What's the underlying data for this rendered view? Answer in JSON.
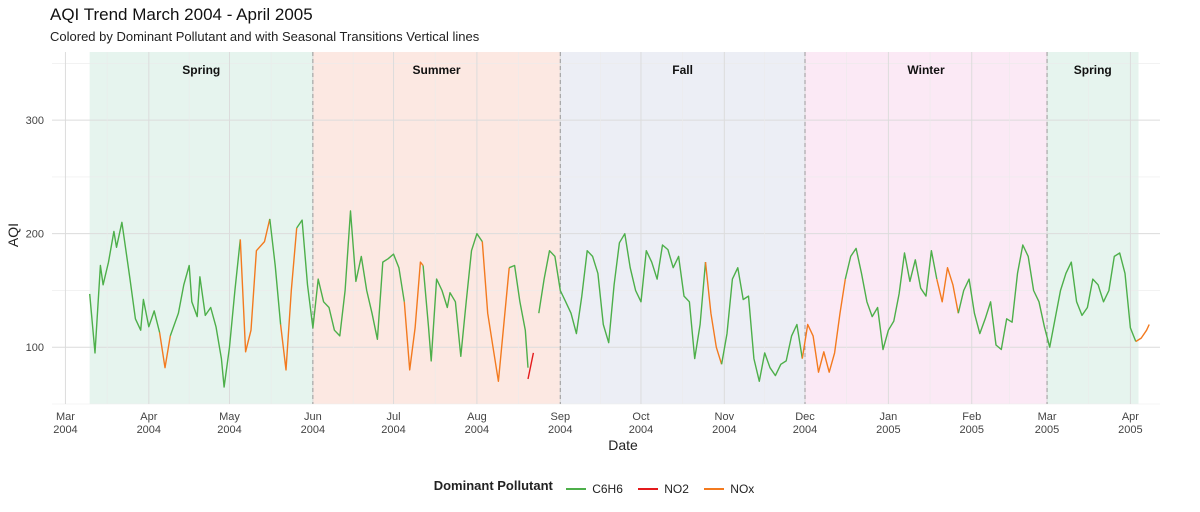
{
  "chart_title": "AQI Trend March 2004 - April 2005",
  "chart_subtitle": "Colored by Dominant Pollutant and with Seasonal Transitions Vertical lines",
  "chart_data": {
    "type": "line",
    "title": "AQI Trend March 2004 - April 2005",
    "subtitle": "Colored by Dominant Pollutant and with Seasonal Transitions Vertical lines",
    "xlabel": "Date",
    "ylabel": "AQI",
    "xlim": [
      "2004-02-25",
      "2005-04-12"
    ],
    "ylim": [
      50,
      360
    ],
    "y_ticks": [
      100,
      200,
      300
    ],
    "x_ticks": [
      {
        "date": "2004-03-01",
        "label": [
          "Mar",
          "2004"
        ]
      },
      {
        "date": "2004-04-01",
        "label": [
          "Apr",
          "2004"
        ]
      },
      {
        "date": "2004-05-01",
        "label": [
          "May",
          "2004"
        ]
      },
      {
        "date": "2004-06-01",
        "label": [
          "Jun",
          "2004"
        ]
      },
      {
        "date": "2004-07-01",
        "label": [
          "Jul",
          "2004"
        ]
      },
      {
        "date": "2004-08-01",
        "label": [
          "Aug",
          "2004"
        ]
      },
      {
        "date": "2004-09-01",
        "label": [
          "Sep",
          "2004"
        ]
      },
      {
        "date": "2004-10-01",
        "label": [
          "Oct",
          "2004"
        ]
      },
      {
        "date": "2004-11-01",
        "label": [
          "Nov",
          "2004"
        ]
      },
      {
        "date": "2004-12-01",
        "label": [
          "Dec",
          "2004"
        ]
      },
      {
        "date": "2005-01-01",
        "label": [
          "Jan",
          "2005"
        ]
      },
      {
        "date": "2005-02-01",
        "label": [
          "Feb",
          "2005"
        ]
      },
      {
        "date": "2005-03-01",
        "label": [
          "Mar",
          "2005"
        ]
      },
      {
        "date": "2005-04-01",
        "label": [
          "Apr",
          "2005"
        ]
      }
    ],
    "grid": true,
    "legend_position": "bottom",
    "legend_title": "Dominant Pollutant",
    "colors": {
      "C6H6": "#4daf4a",
      "NO2": "#e41a1c",
      "NOx": "#f37a1f"
    },
    "seasons": [
      {
        "name": "Spring",
        "start": "2004-03-10",
        "end": "2004-06-01",
        "fill": "#e6f4ee"
      },
      {
        "name": "Summer",
        "start": "2004-06-01",
        "end": "2004-09-01",
        "fill": "#fce8e2"
      },
      {
        "name": "Fall",
        "start": "2004-09-01",
        "end": "2004-12-01",
        "fill": "#eceef5"
      },
      {
        "name": "Winter",
        "start": "2004-12-01",
        "end": "2005-03-01",
        "fill": "#fbe9f5"
      },
      {
        "name": "Spring",
        "start": "2005-03-01",
        "end": "2005-04-04",
        "fill": "#e6f4ee"
      }
    ],
    "transitions": [
      "2004-06-01",
      "2004-09-01",
      "2004-12-01",
      "2005-03-01"
    ],
    "series": [
      {
        "name": "C6H6",
        "points": [
          [
            "2004-03-10",
            147
          ],
          [
            "2004-03-12",
            95
          ],
          [
            "2004-03-14",
            172
          ],
          [
            "2004-03-15",
            155
          ],
          [
            "2004-03-17",
            175
          ],
          [
            "2004-03-19",
            202
          ],
          [
            "2004-03-20",
            188
          ],
          [
            "2004-03-22",
            210
          ],
          [
            "2004-03-25",
            160
          ],
          [
            "2004-03-27",
            125
          ],
          [
            "2004-03-29",
            115
          ],
          [
            "2004-03-30",
            142
          ],
          [
            "2004-04-01",
            118
          ],
          [
            "2004-04-03",
            132
          ],
          [
            "2004-04-05",
            113
          ]
        ]
      },
      {
        "name": "NOx",
        "points": [
          [
            "2004-04-05",
            113
          ],
          [
            "2004-04-07",
            82
          ],
          [
            "2004-04-09",
            110
          ]
        ]
      },
      {
        "name": "C6H6",
        "points": [
          [
            "2004-04-09",
            110
          ],
          [
            "2004-04-12",
            130
          ],
          [
            "2004-04-14",
            155
          ],
          [
            "2004-04-16",
            172
          ],
          [
            "2004-04-17",
            140
          ],
          [
            "2004-04-19",
            127
          ],
          [
            "2004-04-20",
            162
          ],
          [
            "2004-04-22",
            128
          ],
          [
            "2004-04-24",
            135
          ],
          [
            "2004-04-26",
            118
          ],
          [
            "2004-04-28",
            90
          ],
          [
            "2004-04-29",
            65
          ],
          [
            "2004-05-01",
            100
          ],
          [
            "2004-05-03",
            150
          ],
          [
            "2004-05-05",
            195
          ]
        ]
      },
      {
        "name": "NOx",
        "points": [
          [
            "2004-05-05",
            195
          ],
          [
            "2004-05-07",
            96
          ],
          [
            "2004-05-09",
            115
          ],
          [
            "2004-05-11",
            185
          ],
          [
            "2004-05-14",
            193
          ],
          [
            "2004-05-16",
            213
          ]
        ]
      },
      {
        "name": "C6H6",
        "points": [
          [
            "2004-05-16",
            213
          ],
          [
            "2004-05-18",
            172
          ],
          [
            "2004-05-20",
            120
          ]
        ]
      },
      {
        "name": "NOx",
        "points": [
          [
            "2004-05-20",
            120
          ],
          [
            "2004-05-22",
            80
          ],
          [
            "2004-05-24",
            150
          ],
          [
            "2004-05-26",
            205
          ]
        ]
      },
      {
        "name": "C6H6",
        "points": [
          [
            "2004-05-26",
            205
          ],
          [
            "2004-05-28",
            212
          ],
          [
            "2004-05-30",
            155
          ],
          [
            "2004-06-01",
            117
          ],
          [
            "2004-06-03",
            160
          ],
          [
            "2004-06-05",
            140
          ],
          [
            "2004-06-07",
            135
          ],
          [
            "2004-06-09",
            115
          ],
          [
            "2004-06-11",
            110
          ],
          [
            "2004-06-13",
            150
          ],
          [
            "2004-06-15",
            220
          ],
          [
            "2004-06-17",
            158
          ],
          [
            "2004-06-19",
            180
          ],
          [
            "2004-06-21",
            150
          ],
          [
            "2004-06-23",
            130
          ],
          [
            "2004-06-25",
            107
          ],
          [
            "2004-06-27",
            175
          ],
          [
            "2004-06-29",
            178
          ],
          [
            "2004-07-01",
            182
          ],
          [
            "2004-07-03",
            170
          ],
          [
            "2004-07-05",
            140
          ]
        ]
      },
      {
        "name": "NOx",
        "points": [
          [
            "2004-07-05",
            140
          ],
          [
            "2004-07-07",
            80
          ],
          [
            "2004-07-09",
            117
          ],
          [
            "2004-07-11",
            175
          ],
          [
            "2004-07-12",
            172
          ]
        ]
      },
      {
        "name": "C6H6",
        "points": [
          [
            "2004-07-12",
            172
          ],
          [
            "2004-07-14",
            118
          ],
          [
            "2004-07-15",
            88
          ],
          [
            "2004-07-17",
            160
          ],
          [
            "2004-07-19",
            150
          ],
          [
            "2004-07-21",
            135
          ],
          [
            "2004-07-22",
            148
          ],
          [
            "2004-07-24",
            140
          ],
          [
            "2004-07-26",
            92
          ],
          [
            "2004-07-28",
            140
          ],
          [
            "2004-07-30",
            185
          ],
          [
            "2004-08-01",
            200
          ],
          [
            "2004-08-03",
            193
          ]
        ]
      },
      {
        "name": "NOx",
        "points": [
          [
            "2004-08-03",
            193
          ],
          [
            "2004-08-05",
            130
          ],
          [
            "2004-08-07",
            100
          ],
          [
            "2004-08-09",
            70
          ],
          [
            "2004-08-11",
            120
          ],
          [
            "2004-08-13",
            170
          ]
        ]
      },
      {
        "name": "C6H6",
        "points": [
          [
            "2004-08-13",
            170
          ],
          [
            "2004-08-15",
            172
          ],
          [
            "2004-08-17",
            140
          ],
          [
            "2004-08-19",
            115
          ],
          [
            "2004-08-20",
            82
          ]
        ]
      },
      {
        "name": "NO2",
        "points": [
          [
            "2004-08-20",
            72
          ],
          [
            "2004-08-22",
            95
          ]
        ]
      },
      {
        "name": "C6H6",
        "points": [
          [
            "2004-08-24",
            130
          ],
          [
            "2004-08-26",
            160
          ],
          [
            "2004-08-28",
            185
          ],
          [
            "2004-08-30",
            180
          ],
          [
            "2004-09-01",
            150
          ],
          [
            "2004-09-03",
            140
          ],
          [
            "2004-09-05",
            130
          ],
          [
            "2004-09-07",
            112
          ],
          [
            "2004-09-09",
            145
          ],
          [
            "2004-09-11",
            185
          ],
          [
            "2004-09-13",
            180
          ],
          [
            "2004-09-15",
            165
          ],
          [
            "2004-09-17",
            120
          ],
          [
            "2004-09-19",
            104
          ],
          [
            "2004-09-21",
            155
          ],
          [
            "2004-09-23",
            192
          ],
          [
            "2004-09-25",
            200
          ],
          [
            "2004-09-27",
            170
          ],
          [
            "2004-09-29",
            150
          ],
          [
            "2004-10-01",
            140
          ],
          [
            "2004-10-03",
            185
          ],
          [
            "2004-10-05",
            175
          ],
          [
            "2004-10-07",
            160
          ],
          [
            "2004-10-09",
            190
          ],
          [
            "2004-10-11",
            186
          ],
          [
            "2004-10-13",
            170
          ],
          [
            "2004-10-15",
            180
          ],
          [
            "2004-10-17",
            145
          ],
          [
            "2004-10-19",
            140
          ],
          [
            "2004-10-21",
            90
          ],
          [
            "2004-10-23",
            120
          ],
          [
            "2004-10-25",
            175
          ]
        ]
      },
      {
        "name": "NOx",
        "points": [
          [
            "2004-10-25",
            175
          ],
          [
            "2004-10-27",
            130
          ],
          [
            "2004-10-29",
            100
          ],
          [
            "2004-10-31",
            85
          ]
        ]
      },
      {
        "name": "C6H6",
        "points": [
          [
            "2004-10-31",
            85
          ],
          [
            "2004-11-02",
            112
          ],
          [
            "2004-11-04",
            160
          ],
          [
            "2004-11-06",
            170
          ],
          [
            "2004-11-08",
            142
          ],
          [
            "2004-11-10",
            145
          ],
          [
            "2004-11-12",
            90
          ],
          [
            "2004-11-14",
            70
          ],
          [
            "2004-11-16",
            95
          ],
          [
            "2004-11-18",
            82
          ],
          [
            "2004-11-20",
            75
          ],
          [
            "2004-11-22",
            85
          ],
          [
            "2004-11-24",
            88
          ],
          [
            "2004-11-26",
            110
          ],
          [
            "2004-11-28",
            120
          ],
          [
            "2004-11-30",
            90
          ]
        ]
      },
      {
        "name": "NOx",
        "points": [
          [
            "2004-11-30",
            90
          ],
          [
            "2004-12-02",
            120
          ],
          [
            "2004-12-04",
            110
          ],
          [
            "2004-12-06",
            78
          ],
          [
            "2004-12-08",
            96
          ],
          [
            "2004-12-10",
            78
          ],
          [
            "2004-12-12",
            95
          ],
          [
            "2004-12-14",
            130
          ],
          [
            "2004-12-16",
            160
          ]
        ]
      },
      {
        "name": "C6H6",
        "points": [
          [
            "2004-12-16",
            160
          ],
          [
            "2004-12-18",
            180
          ],
          [
            "2004-12-20",
            187
          ],
          [
            "2004-12-22",
            165
          ],
          [
            "2004-12-24",
            140
          ],
          [
            "2004-12-26",
            127
          ],
          [
            "2004-12-28",
            135
          ],
          [
            "2004-12-30",
            98
          ],
          [
            "2005-01-01",
            115
          ],
          [
            "2005-01-03",
            123
          ],
          [
            "2005-01-05",
            147
          ],
          [
            "2005-01-07",
            183
          ],
          [
            "2005-01-09",
            158
          ],
          [
            "2005-01-11",
            177
          ],
          [
            "2005-01-13",
            152
          ],
          [
            "2005-01-15",
            145
          ],
          [
            "2005-01-17",
            185
          ],
          [
            "2005-01-19",
            160
          ]
        ]
      },
      {
        "name": "NOx",
        "points": [
          [
            "2005-01-19",
            160
          ],
          [
            "2005-01-21",
            140
          ],
          [
            "2005-01-23",
            170
          ],
          [
            "2005-01-25",
            155
          ],
          [
            "2005-01-27",
            130
          ]
        ]
      },
      {
        "name": "C6H6",
        "points": [
          [
            "2005-01-27",
            130
          ],
          [
            "2005-01-29",
            150
          ],
          [
            "2005-01-31",
            160
          ],
          [
            "2005-02-02",
            130
          ],
          [
            "2005-02-04",
            112
          ],
          [
            "2005-02-06",
            125
          ],
          [
            "2005-02-08",
            140
          ],
          [
            "2005-02-10",
            102
          ],
          [
            "2005-02-12",
            98
          ],
          [
            "2005-02-14",
            125
          ],
          [
            "2005-02-16",
            122
          ],
          [
            "2005-02-18",
            165
          ],
          [
            "2005-02-20",
            190
          ],
          [
            "2005-02-22",
            180
          ],
          [
            "2005-02-24",
            150
          ],
          [
            "2005-02-26",
            140
          ],
          [
            "2005-02-28",
            118
          ],
          [
            "2005-03-02",
            100
          ],
          [
            "2005-03-04",
            125
          ],
          [
            "2005-03-06",
            150
          ],
          [
            "2005-03-08",
            165
          ],
          [
            "2005-03-10",
            175
          ],
          [
            "2005-03-12",
            140
          ],
          [
            "2005-03-14",
            128
          ],
          [
            "2005-03-16",
            135
          ],
          [
            "2005-03-18",
            160
          ],
          [
            "2005-03-20",
            155
          ],
          [
            "2005-03-22",
            140
          ],
          [
            "2005-03-24",
            150
          ],
          [
            "2005-03-26",
            180
          ],
          [
            "2005-03-28",
            183
          ],
          [
            "2005-03-30",
            165
          ],
          [
            "2005-04-01",
            117
          ],
          [
            "2005-04-03",
            105
          ]
        ]
      },
      {
        "name": "NOx",
        "points": [
          [
            "2005-04-03",
            105
          ],
          [
            "2005-04-05",
            108
          ],
          [
            "2005-04-07",
            115
          ],
          [
            "2005-04-08",
            120
          ]
        ]
      }
    ]
  }
}
